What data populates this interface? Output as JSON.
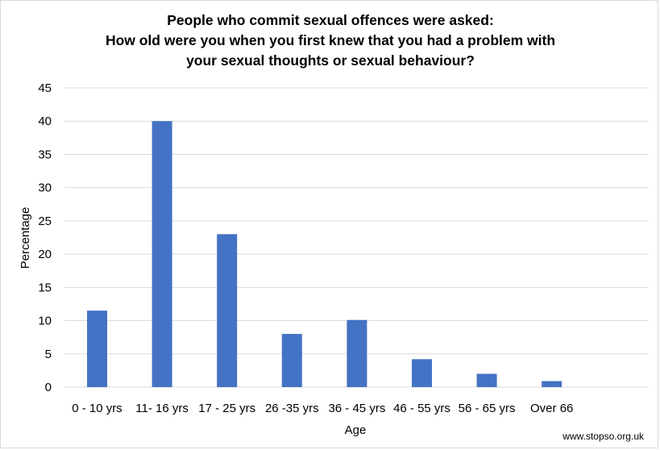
{
  "chart_data": {
    "type": "bar",
    "title_lines": [
      "People who commit sexual offences were asked:",
      "How old were you when you first knew that you had a problem with",
      "your sexual thoughts or sexual behaviour?"
    ],
    "xlabel": "Age",
    "ylabel": "Percentage",
    "categories": [
      "0 - 10 yrs",
      "11- 16 yrs",
      "17 - 25 yrs",
      "26 -35 yrs",
      "36 - 45 yrs",
      "46 - 55 yrs",
      "56 - 65 yrs",
      "Over 66"
    ],
    "values": [
      11.5,
      40,
      23,
      8,
      10.1,
      4.2,
      2,
      0.9
    ],
    "ylim": [
      0,
      45
    ],
    "yticks": [
      0,
      5,
      10,
      15,
      20,
      25,
      30,
      35,
      40,
      45
    ],
    "grid": true,
    "legend": "none",
    "bar_color": "#4472c4",
    "grid_color": "#d9d9d9"
  },
  "watermark": "www.stopso.org.uk"
}
